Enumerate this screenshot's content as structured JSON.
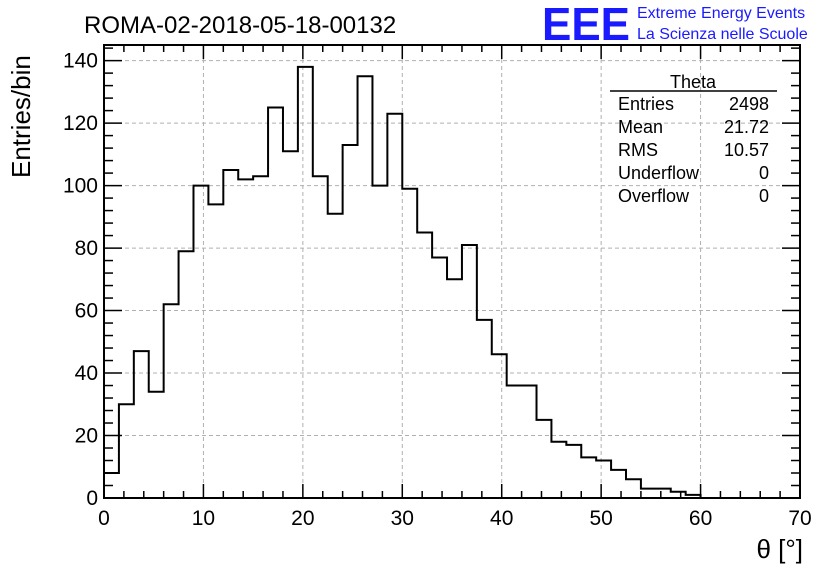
{
  "chart_data": {
    "type": "histogram",
    "title": "ROMA-02-2018-05-18-00132",
    "xlabel": "θ [°]",
    "ylabel": "Entries/bin",
    "xlim": [
      0,
      70
    ],
    "ylim": [
      0,
      145
    ],
    "x_ticks": [
      0,
      10,
      20,
      30,
      40,
      50,
      60,
      70
    ],
    "y_ticks": [
      0,
      20,
      40,
      60,
      80,
      100,
      120,
      140
    ],
    "grid": true,
    "bin_width": 1.5,
    "bin_start": 0,
    "values": [
      8,
      30,
      47,
      34,
      62,
      79,
      100,
      94,
      105,
      102,
      103,
      125,
      111,
      138,
      103,
      91,
      113,
      135,
      100,
      123,
      99,
      85,
      77,
      70,
      81,
      57,
      46,
      36,
      36,
      25,
      18,
      17,
      13,
      12,
      9,
      6,
      3,
      3,
      2,
      1,
      0,
      0,
      0,
      0,
      0,
      0
    ],
    "stats": {
      "title": "Theta",
      "rows": [
        {
          "label": "Entries",
          "value": "2498"
        },
        {
          "label": "Mean",
          "value": "21.72"
        },
        {
          "label": "RMS",
          "value": "10.57"
        },
        {
          "label": "Underflow",
          "value": "0"
        },
        {
          "label": "Overflow",
          "value": "0"
        }
      ]
    }
  },
  "logo": {
    "mark": "EEE",
    "line1": "Extreme Energy Events",
    "line2": "La Scienza nelle Scuole",
    "color": "#1a1aff"
  }
}
